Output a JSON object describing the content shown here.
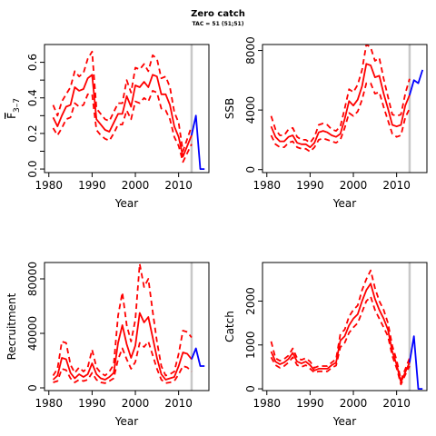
{
  "figure": {
    "title": "Zero catch",
    "subtitle": "TAC = 51 (51;51)"
  },
  "chart_data": [
    {
      "id": "f",
      "type": "line",
      "title": "",
      "xlabel": "Year",
      "ylabel": "F̄",
      "ylabel_sub": "3–7",
      "xlim": [
        1979,
        2017
      ],
      "ylim": [
        -0.02,
        0.7
      ],
      "xticks": [
        1980,
        1990,
        2000,
        2010
      ],
      "yticks": [
        0.0,
        0.2,
        0.4,
        0.6
      ],
      "ytick_labels": [
        "0.0",
        "0.2",
        "0.4",
        "0.6"
      ],
      "vline_x": 2013,
      "series": [
        {
          "role": "estimate",
          "color": "#ff0000",
          "style": "solid",
          "x": [
            1981,
            1982,
            1983,
            1984,
            1985,
            1986,
            1987,
            1988,
            1989,
            1990,
            1991,
            1992,
            1993,
            1994,
            1995,
            1996,
            1997,
            1998,
            1999,
            2000,
            2001,
            2002,
            2003,
            2004,
            2005,
            2006,
            2007,
            2008,
            2009,
            2010,
            2011,
            2012,
            2013
          ],
          "y": [
            0.29,
            0.24,
            0.3,
            0.35,
            0.36,
            0.46,
            0.44,
            0.45,
            0.51,
            0.53,
            0.28,
            0.25,
            0.22,
            0.21,
            0.26,
            0.31,
            0.31,
            0.41,
            0.35,
            0.47,
            0.46,
            0.49,
            0.46,
            0.53,
            0.52,
            0.42,
            0.42,
            0.36,
            0.24,
            0.18,
            0.07,
            0.13,
            0.19
          ]
        },
        {
          "role": "upper",
          "color": "#ff0000",
          "style": "dashed",
          "x": [
            1981,
            1982,
            1983,
            1984,
            1985,
            1986,
            1987,
            1988,
            1989,
            1990,
            1991,
            1992,
            1993,
            1994,
            1995,
            1996,
            1997,
            1998,
            1999,
            2000,
            2001,
            2002,
            2003,
            2004,
            2005,
            2006,
            2007,
            2008,
            2009,
            2010,
            2011,
            2012,
            2013
          ],
          "y": [
            0.36,
            0.3,
            0.38,
            0.42,
            0.46,
            0.55,
            0.52,
            0.54,
            0.62,
            0.66,
            0.34,
            0.31,
            0.28,
            0.27,
            0.32,
            0.37,
            0.37,
            0.5,
            0.43,
            0.57,
            0.56,
            0.59,
            0.55,
            0.64,
            0.62,
            0.51,
            0.52,
            0.46,
            0.32,
            0.26,
            0.1,
            0.17,
            0.24
          ]
        },
        {
          "role": "lower",
          "color": "#ff0000",
          "style": "dashed",
          "x": [
            1981,
            1982,
            1983,
            1984,
            1985,
            1986,
            1987,
            1988,
            1989,
            1990,
            1991,
            1992,
            1993,
            1994,
            1995,
            1996,
            1997,
            1998,
            1999,
            2000,
            2001,
            2002,
            2003,
            2004,
            2005,
            2006,
            2007,
            2008,
            2009,
            2010,
            2011,
            2012,
            2013
          ],
          "y": [
            0.23,
            0.19,
            0.23,
            0.28,
            0.29,
            0.37,
            0.35,
            0.36,
            0.42,
            0.42,
            0.22,
            0.19,
            0.17,
            0.16,
            0.2,
            0.25,
            0.25,
            0.33,
            0.28,
            0.38,
            0.37,
            0.4,
            0.38,
            0.44,
            0.43,
            0.34,
            0.33,
            0.28,
            0.18,
            0.13,
            0.04,
            0.09,
            0.14
          ]
        },
        {
          "role": "projection",
          "color": "#0000ff",
          "style": "solid",
          "x": [
            2013,
            2014,
            2015,
            2016
          ],
          "y": [
            0.19,
            0.3,
            0.0,
            0.0
          ]
        }
      ]
    },
    {
      "id": "ssb",
      "type": "line",
      "title": "",
      "xlabel": "Year",
      "ylabel": "SSB",
      "xlim": [
        1979,
        2017
      ],
      "ylim": [
        -200,
        8400
      ],
      "xticks": [
        1980,
        1990,
        2000,
        2010
      ],
      "yticks": [
        0,
        4000,
        8000
      ],
      "ytick_labels": [
        "0",
        "4000",
        "8000"
      ],
      "vline_x": 2013,
      "series": [
        {
          "role": "estimate",
          "color": "#ff0000",
          "style": "solid",
          "x": [
            1981,
            1982,
            1983,
            1984,
            1985,
            1986,
            1987,
            1988,
            1989,
            1990,
            1991,
            1992,
            1993,
            1994,
            1995,
            1996,
            1997,
            1998,
            1999,
            2000,
            2001,
            2002,
            2003,
            2004,
            2005,
            2006,
            2007,
            2008,
            2009,
            2010,
            2011,
            2012,
            2013
          ],
          "y": [
            2900,
            2200,
            1900,
            1900,
            2200,
            2300,
            1800,
            1700,
            1700,
            1500,
            1800,
            2500,
            2600,
            2500,
            2300,
            2200,
            2400,
            3400,
            4600,
            4300,
            4700,
            5600,
            7100,
            7000,
            6200,
            6300,
            5100,
            4100,
            3000,
            2900,
            3000,
            4300,
            5000
          ],
          "x_note": "1981-2013"
        },
        {
          "role": "upper",
          "color": "#ff0000",
          "style": "dashed",
          "x": [
            1981,
            1982,
            1983,
            1984,
            1985,
            1986,
            1987,
            1988,
            1989,
            1990,
            1991,
            1992,
            1993,
            1994,
            1995,
            1996,
            1997,
            1998,
            1999,
            2000,
            2001,
            2002,
            2003,
            2004,
            2005,
            2006,
            2007,
            2008,
            2009,
            2010,
            2011,
            2012,
            2013
          ],
          "y": [
            3600,
            2700,
            2300,
            2300,
            2700,
            2800,
            2200,
            2000,
            2000,
            1800,
            2200,
            3000,
            3100,
            3000,
            2700,
            2600,
            2900,
            4100,
            5400,
            5200,
            5700,
            6700,
            8400,
            8200,
            7300,
            7500,
            6100,
            4900,
            3700,
            3600,
            3700,
            5100,
            6100
          ]
        },
        {
          "role": "lower",
          "color": "#ff0000",
          "style": "dashed",
          "x": [
            1981,
            1982,
            1983,
            1984,
            1985,
            1986,
            1987,
            1988,
            1989,
            1990,
            1991,
            1992,
            1993,
            1994,
            1995,
            1996,
            1997,
            1998,
            1999,
            2000,
            2001,
            2002,
            2003,
            2004,
            2005,
            2006,
            2007,
            2008,
            2009,
            2010,
            2011,
            2012,
            2013
          ],
          "y": [
            2300,
            1700,
            1500,
            1500,
            1800,
            1900,
            1500,
            1400,
            1400,
            1200,
            1500,
            2000,
            2100,
            2000,
            1900,
            1800,
            2000,
            2800,
            3800,
            3600,
            3900,
            4700,
            5800,
            5800,
            5100,
            5200,
            4200,
            3300,
            2400,
            2200,
            2300,
            3500,
            4100
          ]
        },
        {
          "role": "projection",
          "color": "#0000ff",
          "style": "solid",
          "x": [
            2013,
            2014,
            2015,
            2016
          ],
          "y": [
            5000,
            6000,
            5800,
            6700
          ]
        }
      ]
    },
    {
      "id": "recruitment",
      "type": "line",
      "title": "",
      "xlabel": "Year",
      "ylabel": "Recruitment",
      "xlim": [
        1979,
        2017
      ],
      "ylim": [
        -2000,
        92000
      ],
      "xticks": [
        1980,
        1990,
        2000,
        2010
      ],
      "yticks": [
        0,
        40000,
        80000
      ],
      "ytick_labels": [
        "0",
        "40000",
        "80000"
      ],
      "vline_x": 2013,
      "series": [
        {
          "role": "estimate",
          "color": "#ff0000",
          "style": "solid",
          "x": [
            1981,
            1982,
            1983,
            1984,
            1985,
            1986,
            1987,
            1988,
            1989,
            1990,
            1991,
            1992,
            1993,
            1994,
            1995,
            1996,
            1997,
            1998,
            1999,
            2000,
            2001,
            2002,
            2003,
            2004,
            2005,
            2006,
            2007,
            2008,
            2009,
            2010,
            2011,
            2012,
            2013
          ],
          "y": [
            6000,
            9000,
            22000,
            21000,
            11000,
            7000,
            10000,
            8000,
            10000,
            18000,
            10000,
            7000,
            6000,
            8000,
            11000,
            33000,
            46000,
            32000,
            22000,
            31000,
            55000,
            48000,
            52000,
            37000,
            22000,
            10000,
            6000,
            7000,
            8000,
            16000,
            26000,
            25000,
            21000
          ]
        },
        {
          "role": "upper",
          "color": "#ff0000",
          "style": "dashed",
          "x": [
            1981,
            1982,
            1983,
            1984,
            1985,
            1986,
            1987,
            1988,
            1989,
            1990,
            1991,
            1992,
            1993,
            1994,
            1995,
            1996,
            1997,
            1998,
            1999,
            2000,
            2001,
            2002,
            2003,
            2004,
            2005,
            2006,
            2007,
            2008,
            2009,
            2010,
            2011,
            2012,
            2013
          ],
          "y": [
            9000,
            14000,
            34000,
            33000,
            17000,
            11000,
            15000,
            12000,
            15000,
            28000,
            15000,
            11000,
            9000,
            12000,
            17000,
            53000,
            70000,
            46000,
            34000,
            50000,
            91000,
            74000,
            80000,
            56000,
            34000,
            16000,
            9000,
            10000,
            12000,
            25000,
            42000,
            41000,
            37000
          ]
        },
        {
          "role": "lower",
          "color": "#ff0000",
          "style": "dashed",
          "x": [
            1981,
            1982,
            1983,
            1984,
            1985,
            1986,
            1987,
            1988,
            1989,
            1990,
            1991,
            1992,
            1993,
            1994,
            1995,
            1996,
            1997,
            1998,
            1999,
            2000,
            2001,
            2002,
            2003,
            2004,
            2005,
            2006,
            2007,
            2008,
            2009,
            2010,
            2011,
            2012,
            2013
          ],
          "y": [
            4000,
            5000,
            14000,
            13000,
            7000,
            4000,
            6000,
            5000,
            6000,
            11000,
            6000,
            4000,
            3500,
            5000,
            7000,
            21000,
            29000,
            21000,
            14000,
            19000,
            33000,
            30000,
            34000,
            24000,
            14000,
            6000,
            3500,
            4000,
            5000,
            10000,
            16000,
            15000,
            12000
          ]
        },
        {
          "role": "projection",
          "color": "#0000ff",
          "style": "solid",
          "x": [
            2013,
            2014,
            2015,
            2016
          ],
          "y": [
            21000,
            29000,
            16000,
            16000
          ]
        }
      ]
    },
    {
      "id": "catch",
      "type": "line",
      "title": "",
      "xlabel": "Year",
      "ylabel": "Catch",
      "xlim": [
        1979,
        2017
      ],
      "ylim": [
        -40,
        2880
      ],
      "xticks": [
        1980,
        1990,
        2000,
        2010
      ],
      "yticks": [
        0,
        1000,
        2000
      ],
      "ytick_labels": [
        "0",
        "1000",
        "2000"
      ],
      "vline_x": 2013,
      "series": [
        {
          "role": "estimate",
          "color": "#ff0000",
          "style": "solid",
          "x": [
            1981,
            1982,
            1983,
            1984,
            1985,
            1986,
            1987,
            1988,
            1989,
            1990,
            1991,
            1992,
            1993,
            1994,
            1995,
            1996,
            1997,
            1998,
            1999,
            2000,
            2001,
            2002,
            2003,
            2004,
            2005,
            2006,
            2007,
            2008,
            2009,
            2010,
            2011,
            2012,
            2013
          ],
          "y": [
            850,
            620,
            560,
            600,
            680,
            820,
            620,
            580,
            620,
            540,
            420,
            460,
            460,
            460,
            540,
            600,
            1100,
            1200,
            1450,
            1600,
            1700,
            2000,
            2250,
            2400,
            2050,
            1800,
            1600,
            1350,
            850,
            550,
            150,
            380,
            600
          ]
        },
        {
          "role": "upper",
          "color": "#ff0000",
          "style": "dashed",
          "x": [
            1981,
            1982,
            1983,
            1984,
            1985,
            1986,
            1987,
            1988,
            1989,
            1990,
            1991,
            1992,
            1993,
            1994,
            1995,
            1996,
            1997,
            1998,
            1999,
            2000,
            2001,
            2002,
            2003,
            2004,
            2005,
            2006,
            2007,
            2008,
            2009,
            2010,
            2011,
            2012,
            2013
          ],
          "y": [
            1080,
            700,
            640,
            680,
            760,
            920,
            700,
            660,
            700,
            620,
            480,
            520,
            520,
            520,
            600,
            680,
            1250,
            1350,
            1650,
            1800,
            1900,
            2250,
            2500,
            2700,
            2300,
            2000,
            1800,
            1500,
            980,
            650,
            200,
            450,
            700
          ]
        },
        {
          "role": "lower",
          "color": "#ff0000",
          "style": "dashed",
          "x": [
            1981,
            1982,
            1983,
            1984,
            1985,
            1986,
            1987,
            1988,
            1989,
            1990,
            1991,
            1992,
            1993,
            1994,
            1995,
            1996,
            1997,
            1998,
            1999,
            2000,
            2001,
            2002,
            2003,
            2004,
            2005,
            2006,
            2007,
            2008,
            2009,
            2010,
            2011,
            2012,
            2013
          ],
          "y": [
            720,
            540,
            480,
            520,
            600,
            720,
            540,
            500,
            540,
            460,
            370,
            400,
            400,
            400,
            480,
            530,
            950,
            1050,
            1280,
            1400,
            1500,
            1750,
            2000,
            2100,
            1800,
            1600,
            1400,
            1200,
            750,
            470,
            100,
            320,
            520
          ]
        },
        {
          "role": "projection",
          "color": "#0000ff",
          "style": "solid",
          "x": [
            2013,
            2014,
            2015,
            2016
          ],
          "y": [
            600,
            1200,
            0,
            0
          ]
        }
      ]
    }
  ]
}
